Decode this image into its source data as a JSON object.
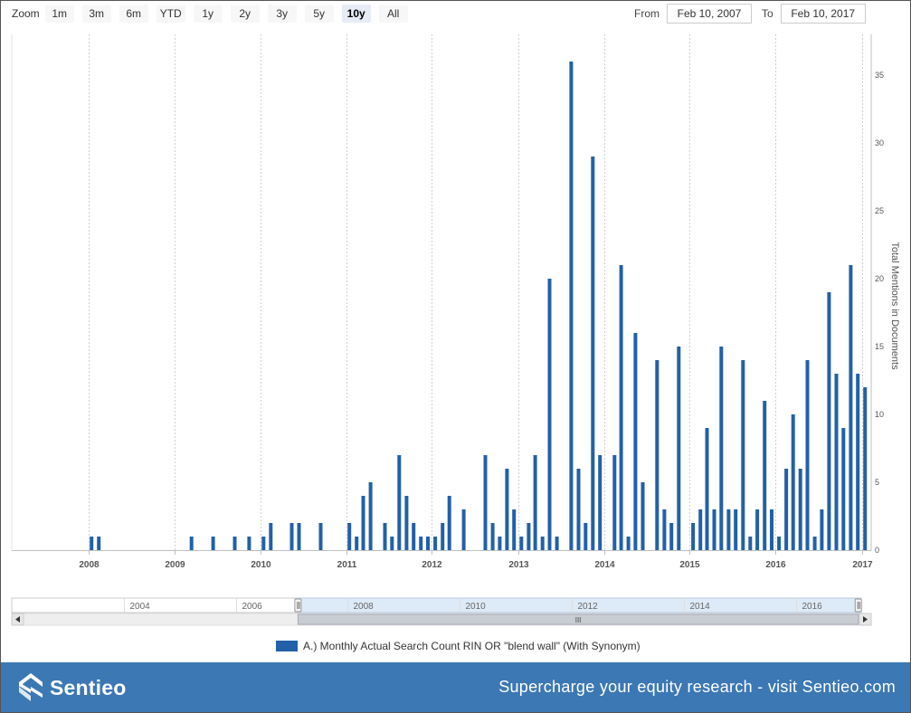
{
  "toolbar": {
    "zoom_label": "Zoom",
    "zoom_buttons": [
      "1m",
      "3m",
      "6m",
      "YTD",
      "1y",
      "2y",
      "3y",
      "5y",
      "10y",
      "All"
    ],
    "active_zoom": "10y",
    "from_label": "From",
    "from_value": "Feb 10, 2007",
    "to_label": "To",
    "to_value": "Feb 10, 2017"
  },
  "navigator": {
    "year_labels": [
      "2004",
      "2006",
      "2008",
      "2010",
      "2012",
      "2014",
      "2016"
    ],
    "scroll_grip": "III",
    "selected_range": [
      "Feb 10, 2007",
      "Feb 10, 2017"
    ]
  },
  "footer": {
    "brand": "Sentieo",
    "tagline": "Supercharge your equity research - visit Sentieo.com"
  },
  "colors": {
    "bar": "#2260a8",
    "footer_bg": "#3c78b4",
    "navigator_selection": "#ddeaf7"
  },
  "icons": [
    "sentieo-logo-icon",
    "scroll-left-arrow-icon",
    "scroll-right-arrow-icon",
    "navigator-handle-icon"
  ],
  "chart_data": {
    "type": "bar",
    "title": "",
    "xlabel": "",
    "ylabel": "Total Mentions in Documents",
    "x_range": [
      "2007-02-10",
      "2017-02-10"
    ],
    "ylim": [
      0,
      38
    ],
    "y_ticks": [
      0,
      5,
      10,
      15,
      20,
      25,
      30,
      35
    ],
    "x_ticks": [
      "2008",
      "2009",
      "2010",
      "2011",
      "2012",
      "2013",
      "2014",
      "2015",
      "2016",
      "2017"
    ],
    "grid": "vertical dotted lines at year ticks",
    "legend_position": "bottom-center",
    "series": [
      {
        "name": "A.) Monthly Actual Search Count RIN OR \"blend wall\" (With Synonym)",
        "points": [
          [
            "2008-01",
            1
          ],
          [
            "2008-02",
            1
          ],
          [
            "2009-03",
            1
          ],
          [
            "2009-06",
            1
          ],
          [
            "2009-09",
            1
          ],
          [
            "2009-11",
            1
          ],
          [
            "2010-01",
            1
          ],
          [
            "2010-02",
            2
          ],
          [
            "2010-05",
            2
          ],
          [
            "2010-06",
            2
          ],
          [
            "2010-09",
            2
          ],
          [
            "2011-01",
            2
          ],
          [
            "2011-02",
            1
          ],
          [
            "2011-03",
            4
          ],
          [
            "2011-04",
            5
          ],
          [
            "2011-06",
            2
          ],
          [
            "2011-07",
            1
          ],
          [
            "2011-08",
            7
          ],
          [
            "2011-09",
            4
          ],
          [
            "2011-10",
            2
          ],
          [
            "2011-11",
            1
          ],
          [
            "2011-12",
            1
          ],
          [
            "2012-01",
            1
          ],
          [
            "2012-02",
            2
          ],
          [
            "2012-03",
            4
          ],
          [
            "2012-05",
            3
          ],
          [
            "2012-08",
            7
          ],
          [
            "2012-09",
            2
          ],
          [
            "2012-10",
            1
          ],
          [
            "2012-11",
            6
          ],
          [
            "2012-12",
            3
          ],
          [
            "2013-01",
            1
          ],
          [
            "2013-02",
            2
          ],
          [
            "2013-03",
            7
          ],
          [
            "2013-04",
            1
          ],
          [
            "2013-05",
            20
          ],
          [
            "2013-06",
            1
          ],
          [
            "2013-08",
            36
          ],
          [
            "2013-09",
            6
          ],
          [
            "2013-10",
            2
          ],
          [
            "2013-11",
            29
          ],
          [
            "2013-12",
            7
          ],
          [
            "2014-02",
            7
          ],
          [
            "2014-03",
            21
          ],
          [
            "2014-04",
            1
          ],
          [
            "2014-05",
            16
          ],
          [
            "2014-06",
            5
          ],
          [
            "2014-08",
            14
          ],
          [
            "2014-09",
            3
          ],
          [
            "2014-10",
            2
          ],
          [
            "2014-11",
            15
          ],
          [
            "2015-01",
            2
          ],
          [
            "2015-02",
            3
          ],
          [
            "2015-03",
            9
          ],
          [
            "2015-04",
            3
          ],
          [
            "2015-05",
            15
          ],
          [
            "2015-06",
            3
          ],
          [
            "2015-07",
            3
          ],
          [
            "2015-08",
            14
          ],
          [
            "2015-09",
            1
          ],
          [
            "2015-10",
            3
          ],
          [
            "2015-11",
            11
          ],
          [
            "2015-12",
            3
          ],
          [
            "2016-01",
            1
          ],
          [
            "2016-02",
            6
          ],
          [
            "2016-03",
            10
          ],
          [
            "2016-04",
            6
          ],
          [
            "2016-05",
            14
          ],
          [
            "2016-06",
            1
          ],
          [
            "2016-07",
            3
          ],
          [
            "2016-08",
            19
          ],
          [
            "2016-09",
            13
          ],
          [
            "2016-10",
            9
          ],
          [
            "2016-11",
            21
          ],
          [
            "2016-12",
            13
          ],
          [
            "2017-01",
            12
          ]
        ]
      }
    ]
  }
}
